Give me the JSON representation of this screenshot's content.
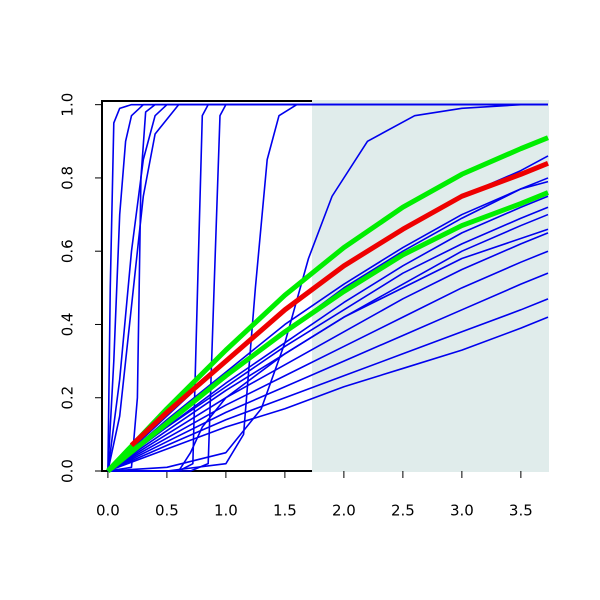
{
  "chart_data": {
    "type": "line",
    "xlim": [
      -0.05,
      3.73
    ],
    "ylim": [
      0,
      1.01
    ],
    "xticks": [
      {
        "value": 0,
        "label": "0.0"
      },
      {
        "value": 0.5,
        "label": "0.5"
      },
      {
        "value": 1,
        "label": "1.0"
      },
      {
        "value": 1.5,
        "label": "1.5"
      },
      {
        "value": 2,
        "label": "2.0"
      },
      {
        "value": 2.5,
        "label": "2.5"
      },
      {
        "value": 3,
        "label": "3.0"
      },
      {
        "value": 3.5,
        "label": "3.5"
      }
    ],
    "yticks": [
      {
        "value": 0,
        "label": "0.0"
      },
      {
        "value": 0.2,
        "label": "0.2"
      },
      {
        "value": 0.4,
        "label": "0.4"
      },
      {
        "value": 0.6,
        "label": "0.6"
      },
      {
        "value": 0.8,
        "label": "0.8"
      },
      {
        "value": 1,
        "label": "1.0"
      }
    ],
    "shade_from": 1.73,
    "shade_color": "#e0eceb",
    "series": [
      {
        "color": "#0000ee",
        "x": [
          0,
          0.02,
          0.05,
          0.1,
          0.2,
          3.73
        ],
        "values": [
          0,
          0.5,
          0.95,
          0.99,
          1,
          1
        ]
      },
      {
        "color": "#0000ee",
        "x": [
          0,
          0.05,
          0.1,
          0.15,
          0.2,
          0.3,
          3.73
        ],
        "values": [
          0,
          0.3,
          0.7,
          0.9,
          0.97,
          1,
          1
        ]
      },
      {
        "color": "#0000ee",
        "x": [
          0,
          0.1,
          0.2,
          0.3,
          0.4,
          0.5,
          3.73
        ],
        "values": [
          0,
          0.25,
          0.6,
          0.85,
          0.97,
          1,
          1
        ]
      },
      {
        "color": "#0000ee",
        "x": [
          0,
          0.1,
          0.2,
          0.3,
          0.4,
          0.6,
          3.73
        ],
        "values": [
          0,
          0.15,
          0.45,
          0.75,
          0.92,
          1,
          1
        ]
      },
      {
        "color": "#0000ee",
        "x": [
          0,
          0.2,
          0.25,
          0.28,
          0.32,
          0.4,
          3.73
        ],
        "values": [
          0,
          0.01,
          0.2,
          0.8,
          0.98,
          1,
          1
        ]
      },
      {
        "color": "#0000ee",
        "x": [
          0,
          0.6,
          0.72,
          0.76,
          0.8,
          0.85,
          3.73
        ],
        "values": [
          0,
          0,
          0.02,
          0.5,
          0.97,
          1,
          1
        ]
      },
      {
        "color": "#0000ee",
        "x": [
          0,
          0.7,
          0.85,
          0.9,
          0.95,
          1.0,
          3.73
        ],
        "values": [
          0,
          0,
          0.02,
          0.5,
          0.97,
          1,
          1
        ]
      },
      {
        "color": "#0000ee",
        "x": [
          0,
          0.5,
          1.0,
          1.15,
          1.25,
          1.35,
          1.45,
          1.6,
          3.73
        ],
        "values": [
          0,
          0,
          0.02,
          0.1,
          0.5,
          0.85,
          0.97,
          1,
          1
        ]
      },
      {
        "color": "#0000ee",
        "x": [
          0,
          0.5,
          1,
          1.3,
          1.5,
          1.7,
          1.9,
          2.2,
          2.6,
          3,
          3.5,
          3.73
        ],
        "values": [
          0,
          0.01,
          0.05,
          0.17,
          0.35,
          0.58,
          0.75,
          0.9,
          0.97,
          0.99,
          1,
          1
        ]
      },
      {
        "color": "#0000ee",
        "x": [
          0,
          0.6,
          0.7,
          0.8,
          1,
          1.5,
          2,
          3,
          3.73
        ],
        "values": [
          0,
          0,
          0.05,
          0.12,
          0.2,
          0.32,
          0.42,
          0.58,
          0.66
        ]
      },
      {
        "color": "#0000ee",
        "x": [
          0,
          0.5,
          1,
          1.5,
          2,
          2.5,
          3,
          3.5,
          3.73
        ],
        "values": [
          0,
          0.15,
          0.3,
          0.44,
          0.56,
          0.66,
          0.75,
          0.82,
          0.86
        ]
      },
      {
        "color": "#0000ee",
        "x": [
          0,
          0.5,
          1,
          1.5,
          2,
          2.5,
          3,
          3.5,
          3.73
        ],
        "values": [
          0,
          0.13,
          0.26,
          0.38,
          0.5,
          0.6,
          0.69,
          0.77,
          0.8
        ]
      },
      {
        "color": "#0000ee",
        "x": [
          0,
          0.5,
          1,
          1.5,
          2,
          2.5,
          3,
          3.5,
          3.73
        ],
        "values": [
          0,
          0.12,
          0.24,
          0.35,
          0.46,
          0.56,
          0.65,
          0.72,
          0.75
        ]
      },
      {
        "color": "#0000ee",
        "x": [
          0,
          0.5,
          1,
          1.5,
          2,
          2.5,
          3,
          3.5,
          3.73
        ],
        "values": [
          0,
          0.11,
          0.22,
          0.32,
          0.42,
          0.51,
          0.6,
          0.67,
          0.7
        ]
      },
      {
        "color": "#0000ee",
        "x": [
          0,
          0.5,
          1,
          1.5,
          2,
          2.5,
          3,
          3.5,
          3.73
        ],
        "values": [
          0,
          0.1,
          0.2,
          0.29,
          0.38,
          0.47,
          0.55,
          0.62,
          0.65
        ]
      },
      {
        "color": "#0000ee",
        "x": [
          0,
          0.5,
          1,
          1.5,
          2,
          2.5,
          3,
          3.5,
          3.73
        ],
        "values": [
          0,
          0.09,
          0.18,
          0.26,
          0.34,
          0.42,
          0.5,
          0.57,
          0.6
        ]
      },
      {
        "color": "#0000ee",
        "x": [
          0,
          0.5,
          1,
          1.5,
          2,
          2.5,
          3,
          3.5,
          3.73
        ],
        "values": [
          0,
          0.08,
          0.16,
          0.23,
          0.3,
          0.37,
          0.44,
          0.51,
          0.54
        ]
      },
      {
        "color": "#0000ee",
        "x": [
          0,
          0.5,
          1,
          1.5,
          2,
          2.5,
          3,
          3.5,
          3.73
        ],
        "values": [
          0,
          0.07,
          0.14,
          0.2,
          0.26,
          0.32,
          0.38,
          0.44,
          0.47
        ]
      },
      {
        "color": "#0000ee",
        "x": [
          0,
          0.5,
          1,
          1.5,
          2,
          2.5,
          3,
          3.5,
          3.73
        ],
        "values": [
          0,
          0.06,
          0.12,
          0.17,
          0.23,
          0.28,
          0.33,
          0.39,
          0.42
        ]
      },
      {
        "color": "#0000ee",
        "x": [
          0,
          0.5,
          1,
          1.5,
          2,
          2.5,
          3,
          3.5,
          3.73
        ],
        "values": [
          0,
          0.14,
          0.27,
          0.4,
          0.51,
          0.61,
          0.7,
          0.77,
          0.79
        ]
      },
      {
        "color": "#0000ee",
        "x": [
          0,
          0.5,
          1,
          1.5,
          2,
          2.5,
          3,
          3.5,
          3.73
        ],
        "values": [
          0,
          0.12,
          0.23,
          0.34,
          0.44,
          0.54,
          0.62,
          0.69,
          0.72
        ]
      },
      {
        "color": "#00ee00",
        "x": [
          0,
          0.5,
          1,
          1.5,
          2,
          2.5,
          3,
          3.5,
          3.73
        ],
        "values": [
          0,
          0.17,
          0.33,
          0.48,
          0.61,
          0.72,
          0.81,
          0.88,
          0.91
        ]
      },
      {
        "color": "#00ee00",
        "x": [
          0,
          0.5,
          1,
          1.5,
          2,
          2.5,
          3,
          3.5,
          3.73
        ],
        "values": [
          0,
          0.13,
          0.26,
          0.38,
          0.49,
          0.59,
          0.67,
          0.73,
          0.76
        ]
      },
      {
        "color": "#ee0000",
        "x": [
          0.2,
          0.5,
          1,
          1.5,
          2,
          2.5,
          3,
          3.5,
          3.73
        ],
        "values": [
          0.07,
          0.16,
          0.3,
          0.44,
          0.56,
          0.66,
          0.75,
          0.81,
          0.84
        ]
      }
    ]
  }
}
